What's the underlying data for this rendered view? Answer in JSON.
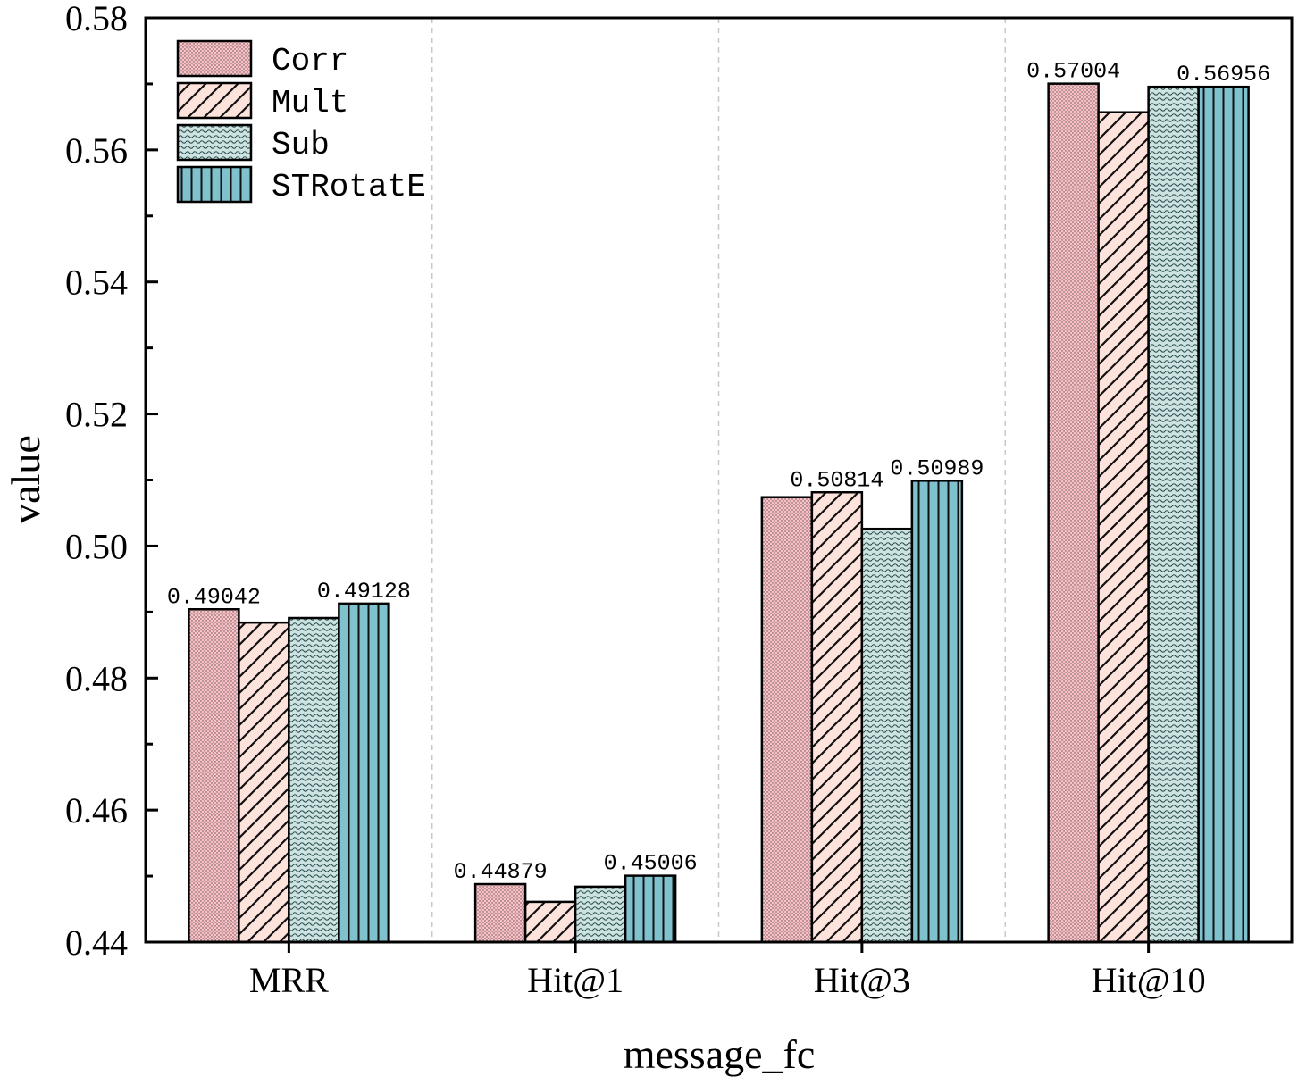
{
  "chart_data": {
    "type": "bar",
    "xlabel": "message_fc",
    "ylabel": "value",
    "ylim": [
      0.44,
      0.58
    ],
    "yticks": [
      "0.44",
      "0.46",
      "0.48",
      "0.50",
      "0.52",
      "0.54",
      "0.56",
      "0.58"
    ],
    "categories": [
      "MRR",
      "Hit@1",
      "Hit@3",
      "Hit@10"
    ],
    "series": [
      {
        "name": "Corr",
        "color": "#fbbfc5",
        "pattern": "dots",
        "values": [
          0.49042,
          0.44879,
          0.5074,
          0.57004
        ]
      },
      {
        "name": "Mult",
        "color": "#fde3db",
        "pattern": "diagonal-hatch",
        "values": [
          0.4884,
          0.4461,
          0.50814,
          0.5657
        ]
      },
      {
        "name": "Sub",
        "color": "#cde3e2",
        "pattern": "wave",
        "values": [
          0.4891,
          0.4484,
          0.5026,
          0.56956
        ]
      },
      {
        "name": "STRotatE",
        "color": "#7fc1cd",
        "pattern": "vertical-lines",
        "values": [
          0.49128,
          0.45006,
          0.50989,
          0.56956
        ]
      }
    ],
    "data_labels": [
      {
        "category": 0,
        "series": 0,
        "text": "0.49042"
      },
      {
        "category": 0,
        "series": 3,
        "text": "0.49128"
      },
      {
        "category": 1,
        "series": 0,
        "text": "0.44879"
      },
      {
        "category": 1,
        "series": 3,
        "text": "0.45006"
      },
      {
        "category": 2,
        "series": 1,
        "text": "0.50814"
      },
      {
        "category": 2,
        "series": 3,
        "text": "0.50989"
      },
      {
        "category": 3,
        "series": 0,
        "text": "0.57004"
      },
      {
        "category": 3,
        "series": 3,
        "text": "0.56956"
      }
    ],
    "grid": "vertical dashed separators between groups",
    "legend_position": "top-left"
  }
}
